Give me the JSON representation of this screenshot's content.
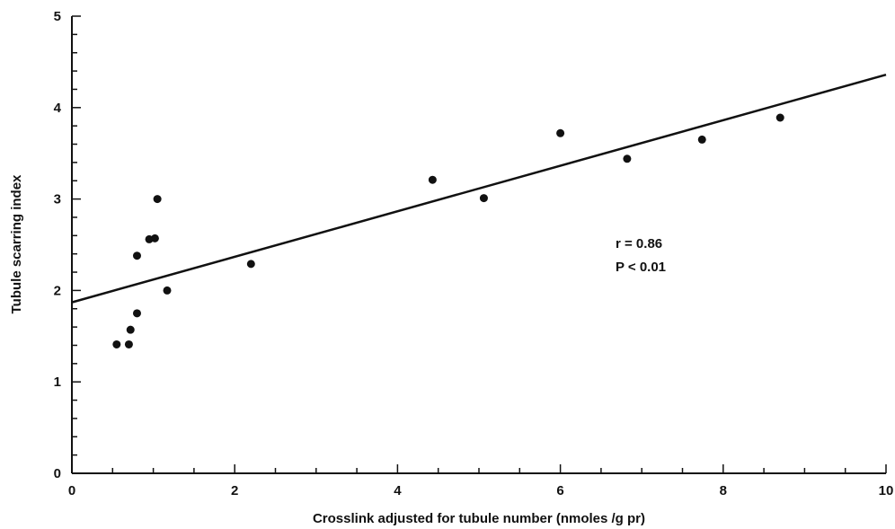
{
  "chart_data": {
    "type": "scatter",
    "xlabel": "Crosslink adjusted for tubule number (nmoles /g pr)",
    "ylabel": "Tubule scarring index",
    "xlim": [
      0,
      10
    ],
    "ylim": [
      0,
      5
    ],
    "x_ticks": [
      0,
      2,
      4,
      6,
      8,
      10
    ],
    "y_ticks": [
      0,
      1,
      2,
      3,
      4,
      5
    ],
    "x_tick_labels": [
      "0",
      "2",
      "4",
      "6",
      "8",
      "10"
    ],
    "y_tick_labels": [
      "0",
      "1",
      "2",
      "3",
      "4",
      "5"
    ],
    "x_minor_step": 0.5,
    "y_minor_step": 0.2,
    "grid": false,
    "series": [
      {
        "points": [
          {
            "x": 0.55,
            "y": 1.41
          },
          {
            "x": 0.7,
            "y": 1.41
          },
          {
            "x": 0.72,
            "y": 1.57
          },
          {
            "x": 0.8,
            "y": 1.75
          },
          {
            "x": 0.8,
            "y": 2.38
          },
          {
            "x": 0.95,
            "y": 2.56
          },
          {
            "x": 1.02,
            "y": 2.57
          },
          {
            "x": 1.05,
            "y": 3.0
          },
          {
            "x": 1.17,
            "y": 2.0
          },
          {
            "x": 2.2,
            "y": 2.29
          },
          {
            "x": 4.43,
            "y": 3.21
          },
          {
            "x": 5.06,
            "y": 3.01
          },
          {
            "x": 6.0,
            "y": 3.72
          },
          {
            "x": 6.82,
            "y": 3.44
          },
          {
            "x": 7.74,
            "y": 3.65
          },
          {
            "x": 8.7,
            "y": 3.89
          }
        ]
      }
    ],
    "regression_line": {
      "x": [
        0,
        10
      ],
      "y": [
        1.87,
        4.36
      ]
    },
    "annotations": [
      "r = 0.86",
      "P < 0.01"
    ],
    "colors": {
      "marker": "#111111",
      "line": "#111111",
      "axis": "#111111"
    }
  }
}
